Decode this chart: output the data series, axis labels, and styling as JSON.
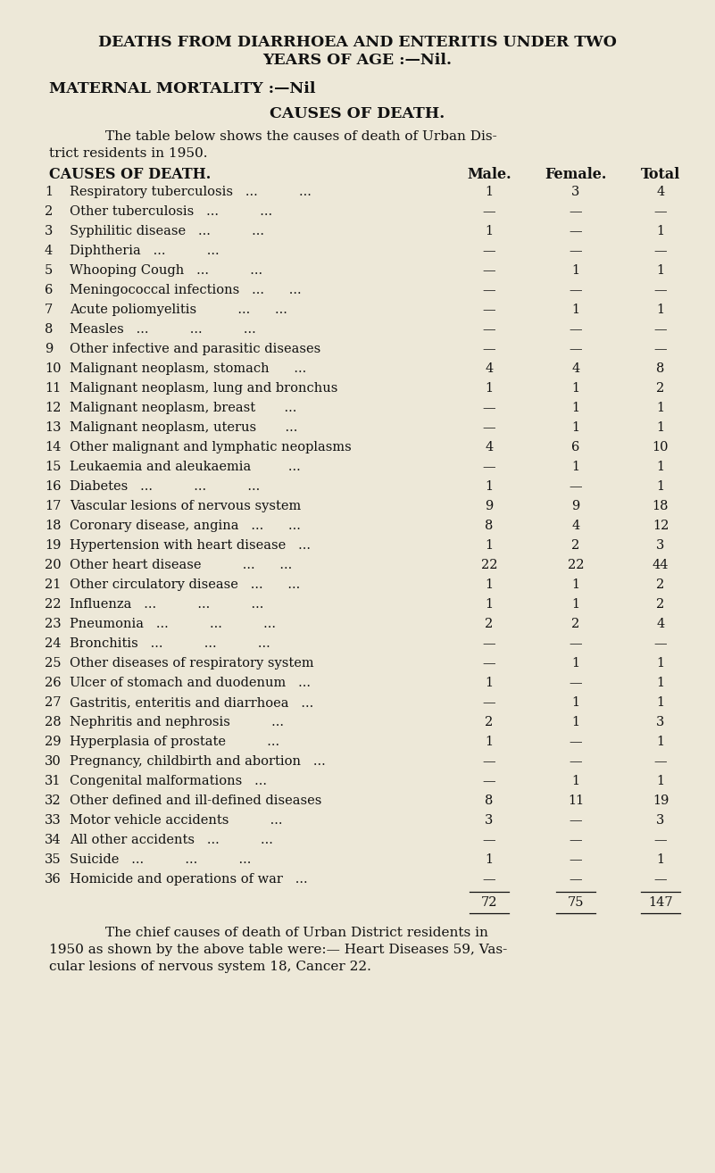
{
  "bg_color": "#ede8d8",
  "title1": "DEATHS FROM DIARRHOEA AND ENTERITIS UNDER TWO",
  "title2": "YEARS OF AGE :—Nil.",
  "title3": "MATERNAL MORTALITY :—Nil",
  "title4": "CAUSES OF DEATH.",
  "para1": "The table below shows the causes of death of Urban Dis-",
  "para2": "trict residents in 1950.",
  "col_header": "CAUSES OF DEATH.",
  "col_male": "Male.",
  "col_female": "Female.",
  "col_total": "Total",
  "rows": [
    {
      "num": "1",
      "cause": "Respiratory tuberculosis   ...          ...",
      "male": "1",
      "female": "3",
      "total": "4"
    },
    {
      "num": "2",
      "cause": "Other tuberculosis   ...          ...",
      "male": "—",
      "female": "—",
      "total": "—"
    },
    {
      "num": "3",
      "cause": "Syphilitic disease   ...          ...",
      "male": "1",
      "female": "—",
      "total": "1"
    },
    {
      "num": "4",
      "cause": "Diphtheria   ...          ...",
      "male": "—",
      "female": "—",
      "total": "—"
    },
    {
      "num": "5",
      "cause": "Whooping Cough   ...          ...",
      "male": "—",
      "female": "1",
      "total": "1"
    },
    {
      "num": "6",
      "cause": "Meningococcal infections   ...      ...",
      "male": "—",
      "female": "—",
      "total": "—"
    },
    {
      "num": "7",
      "cause": "Acute poliomyelitis          ...      ...",
      "male": "—",
      "female": "1",
      "total": "1"
    },
    {
      "num": "8",
      "cause": "Measles   ...          ...          ...",
      "male": "—",
      "female": "—",
      "total": "—"
    },
    {
      "num": "9",
      "cause": "Other infective and parasitic diseases",
      "male": "—",
      "female": "—",
      "total": "—"
    },
    {
      "num": "10",
      "cause": "Malignant neoplasm, stomach      ...",
      "male": "4",
      "female": "4",
      "total": "8"
    },
    {
      "num": "11",
      "cause": "Malignant neoplasm, lung and bronchus",
      "male": "1",
      "female": "1",
      "total": "2"
    },
    {
      "num": "12",
      "cause": "Malignant neoplasm, breast       ...",
      "male": "—",
      "female": "1",
      "total": "1"
    },
    {
      "num": "13",
      "cause": "Malignant neoplasm, uterus       ...",
      "male": "—",
      "female": "1",
      "total": "1"
    },
    {
      "num": "14",
      "cause": "Other malignant and lymphatic neoplasms",
      "male": "4",
      "female": "6",
      "total": "10"
    },
    {
      "num": "15",
      "cause": "Leukaemia and aleukaemia         ...",
      "male": "—",
      "female": "1",
      "total": "1"
    },
    {
      "num": "16",
      "cause": "Diabetes   ...          ...          ...",
      "male": "1",
      "female": "—",
      "total": "1"
    },
    {
      "num": "17",
      "cause": "Vascular lesions of nervous system",
      "male": "9",
      "female": "9",
      "total": "18"
    },
    {
      "num": "18",
      "cause": "Coronary disease, angina   ...      ...",
      "male": "8",
      "female": "4",
      "total": "12"
    },
    {
      "num": "19",
      "cause": "Hypertension with heart disease   ...",
      "male": "1",
      "female": "2",
      "total": "3"
    },
    {
      "num": "20",
      "cause": "Other heart disease          ...      ...",
      "male": "22",
      "female": "22",
      "total": "44"
    },
    {
      "num": "21",
      "cause": "Other circulatory disease   ...      ...",
      "male": "1",
      "female": "1",
      "total": "2"
    },
    {
      "num": "22",
      "cause": "Influenza   ...          ...          ...",
      "male": "1",
      "female": "1",
      "total": "2"
    },
    {
      "num": "23",
      "cause": "Pneumonia   ...          ...          ...",
      "male": "2",
      "female": "2",
      "total": "4"
    },
    {
      "num": "24",
      "cause": "Bronchitis   ...          ...          ...",
      "male": "—",
      "female": "—",
      "total": "—"
    },
    {
      "num": "25",
      "cause": "Other diseases of respiratory system",
      "male": "—",
      "female": "1",
      "total": "1"
    },
    {
      "num": "26",
      "cause": "Ulcer of stomach and duodenum   ...",
      "male": "1",
      "female": "—",
      "total": "1"
    },
    {
      "num": "27",
      "cause": "Gastritis, enteritis and diarrhoea   ...",
      "male": "—",
      "female": "1",
      "total": "1"
    },
    {
      "num": "28",
      "cause": "Nephritis and nephrosis          ...",
      "male": "2",
      "female": "1",
      "total": "3"
    },
    {
      "num": "29",
      "cause": "Hyperplasia of prostate          ...",
      "male": "1",
      "female": "—",
      "total": "1"
    },
    {
      "num": "30",
      "cause": "Pregnancy, childbirth and abortion   ...",
      "male": "—",
      "female": "—",
      "total": "—"
    },
    {
      "num": "31",
      "cause": "Congenital malformations   ...",
      "male": "—",
      "female": "1",
      "total": "1"
    },
    {
      "num": "32",
      "cause": "Other defined and ill-defined diseases",
      "male": "8",
      "female": "11",
      "total": "19"
    },
    {
      "num": "33",
      "cause": "Motor vehicle accidents          ...",
      "male": "3",
      "female": "—",
      "total": "3"
    },
    {
      "num": "34",
      "cause": "All other accidents   ...          ...",
      "male": "—",
      "female": "—",
      "total": "—"
    },
    {
      "num": "35",
      "cause": "Suicide   ...          ...          ...",
      "male": "1",
      "female": "—",
      "total": "1"
    },
    {
      "num": "36",
      "cause": "Homicide and operations of war   ...",
      "male": "—",
      "female": "—",
      "total": "—"
    }
  ],
  "total_male": "72",
  "total_female": "75",
  "total_total": "147",
  "footer1": "The chief causes of death of Urban District residents in",
  "footer2": "1950 as shown by the above table were:— Heart Diseases 59, Vas-",
  "footer3": "cular lesions of nervous system 18, Cancer 22."
}
